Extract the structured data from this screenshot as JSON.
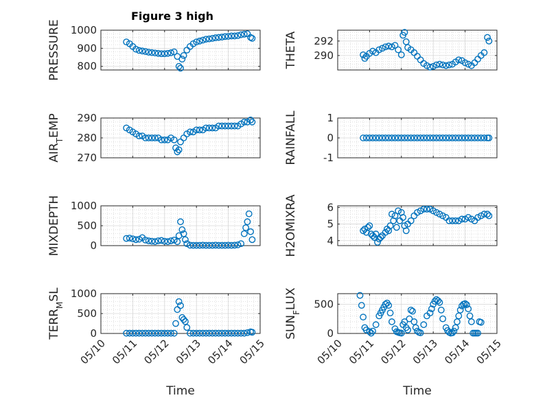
{
  "figure": {
    "title": "Figure 3 high",
    "marker_color": "#0072BD"
  },
  "chart_data": [
    {
      "type": "scatter",
      "title": "Figure 3 high",
      "ylabel": "PRESSURE",
      "xlabel": "",
      "ylim": [
        780,
        1000
      ],
      "yticks": [
        800,
        900,
        1000
      ],
      "xlim": [
        10,
        15
      ],
      "xticks": [
        "05/10",
        "05/11",
        "05/12",
        "05/13",
        "05/14",
        "05/15"
      ],
      "show_xticklabels": false,
      "grid": true,
      "x": [
        10.8,
        10.9,
        11.0,
        11.1,
        11.2,
        11.3,
        11.4,
        11.5,
        11.6,
        11.7,
        11.8,
        11.9,
        12.0,
        12.1,
        12.2,
        12.3,
        12.4,
        12.45,
        12.5,
        12.55,
        12.6,
        12.7,
        12.8,
        12.9,
        13.0,
        13.1,
        13.2,
        13.3,
        13.4,
        13.5,
        13.6,
        13.7,
        13.8,
        13.9,
        14.0,
        14.1,
        14.2,
        14.3,
        14.4,
        14.5,
        14.6,
        14.7,
        14.75
      ],
      "y": [
        935,
        925,
        910,
        895,
        888,
        885,
        882,
        878,
        876,
        874,
        872,
        870,
        870,
        872,
        875,
        880,
        855,
        800,
        790,
        840,
        860,
        890,
        910,
        925,
        935,
        940,
        945,
        950,
        952,
        955,
        958,
        960,
        962,
        965,
        966,
        968,
        968,
        970,
        975,
        978,
        980,
        960,
        955
      ]
    },
    {
      "type": "scatter",
      "title": "",
      "ylabel": "THETA",
      "xlabel": "",
      "ylim": [
        288,
        293.5
      ],
      "yticks": [
        290,
        292
      ],
      "xlim": [
        10,
        15
      ],
      "xticks": [
        "05/10",
        "05/11",
        "05/12",
        "05/13",
        "05/14",
        "05/15"
      ],
      "show_xticklabels": false,
      "grid": true,
      "x": [
        10.8,
        10.85,
        10.9,
        11.0,
        11.1,
        11.2,
        11.3,
        11.4,
        11.5,
        11.6,
        11.7,
        11.8,
        11.9,
        12.0,
        12.05,
        12.1,
        12.15,
        12.2,
        12.3,
        12.4,
        12.5,
        12.6,
        12.7,
        12.8,
        12.9,
        13.0,
        13.1,
        13.2,
        13.3,
        13.4,
        13.5,
        13.6,
        13.7,
        13.8,
        13.9,
        14.0,
        14.1,
        14.2,
        14.3,
        14.4,
        14.5,
        14.6,
        14.7,
        14.75
      ],
      "y": [
        290.1,
        289.6,
        289.9,
        290.3,
        290.6,
        290.4,
        290.8,
        291.0,
        291.2,
        291.3,
        291.2,
        291.4,
        290.8,
        290.1,
        292.8,
        293.2,
        291.9,
        291.1,
        290.8,
        290.4,
        289.9,
        289.4,
        288.9,
        288.6,
        288.4,
        288.5,
        288.7,
        288.8,
        288.7,
        288.6,
        288.7,
        288.8,
        289.1,
        289.4,
        289.3,
        289.0,
        288.8,
        288.6,
        289.0,
        289.5,
        290.0,
        290.4,
        292.5,
        292.0
      ]
    },
    {
      "type": "scatter",
      "title": "",
      "ylabel": "AIR_TEMP",
      "xlabel": "",
      "ylim": [
        270,
        290
      ],
      "yticks": [
        270,
        280,
        290
      ],
      "xlim": [
        10,
        15
      ],
      "xticks": [
        "05/10",
        "05/11",
        "05/12",
        "05/13",
        "05/14",
        "05/15"
      ],
      "show_xticklabels": false,
      "grid": true,
      "x": [
        10.8,
        10.9,
        11.0,
        11.1,
        11.2,
        11.3,
        11.4,
        11.5,
        11.6,
        11.7,
        11.8,
        11.9,
        12.0,
        12.1,
        12.2,
        12.3,
        12.35,
        12.4,
        12.45,
        12.5,
        12.6,
        12.7,
        12.8,
        12.9,
        13.0,
        13.1,
        13.2,
        13.3,
        13.4,
        13.5,
        13.6,
        13.7,
        13.8,
        13.9,
        14.0,
        14.1,
        14.2,
        14.3,
        14.4,
        14.5,
        14.6,
        14.7,
        14.75
      ],
      "y": [
        285,
        284,
        283,
        282,
        281,
        281,
        280,
        280,
        280,
        280,
        280,
        279,
        279,
        279,
        280,
        279,
        275,
        273,
        274,
        278,
        280,
        282,
        283,
        283,
        284,
        284,
        284,
        285,
        285,
        285,
        285,
        286,
        286,
        286,
        286,
        286,
        286,
        286,
        287,
        288,
        288,
        289,
        288
      ]
    },
    {
      "type": "scatter",
      "title": "",
      "ylabel": "RAINFALL",
      "xlabel": "",
      "ylim": [
        -1,
        1
      ],
      "yticks": [
        -1,
        0,
        1
      ],
      "xlim": [
        10,
        15
      ],
      "xticks": [
        "05/10",
        "05/11",
        "05/12",
        "05/13",
        "05/14",
        "05/15"
      ],
      "show_xticklabels": false,
      "grid": true,
      "x": [
        10.8,
        10.9,
        11.0,
        11.1,
        11.2,
        11.3,
        11.4,
        11.5,
        11.6,
        11.7,
        11.8,
        11.9,
        12.0,
        12.1,
        12.2,
        12.3,
        12.4,
        12.5,
        12.6,
        12.7,
        12.8,
        12.9,
        13.0,
        13.1,
        13.2,
        13.3,
        13.4,
        13.5,
        13.6,
        13.7,
        13.8,
        13.9,
        14.0,
        14.1,
        14.2,
        14.3,
        14.4,
        14.5,
        14.6,
        14.7,
        14.75
      ],
      "y": [
        0,
        0,
        0,
        0,
        0,
        0,
        0,
        0,
        0,
        0,
        0,
        0,
        0,
        0,
        0,
        0,
        0,
        0,
        0,
        0,
        0,
        0,
        0,
        0,
        0,
        0,
        0,
        0,
        0,
        0,
        0,
        0,
        0,
        0,
        0,
        0,
        0,
        0,
        0,
        0,
        0
      ]
    },
    {
      "type": "scatter",
      "title": "",
      "ylabel": "MIXDEPTH",
      "xlabel": "",
      "ylim": [
        0,
        1000
      ],
      "yticks": [
        0,
        500,
        1000
      ],
      "xlim": [
        10,
        15
      ],
      "xticks": [
        "05/10",
        "05/11",
        "05/12",
        "05/13",
        "05/14",
        "05/15"
      ],
      "show_xticklabels": false,
      "grid": true,
      "x": [
        10.8,
        10.9,
        11.0,
        11.1,
        11.2,
        11.3,
        11.4,
        11.5,
        11.6,
        11.7,
        11.8,
        11.9,
        12.0,
        12.1,
        12.2,
        12.3,
        12.4,
        12.45,
        12.5,
        12.55,
        12.6,
        12.65,
        12.7,
        12.8,
        12.9,
        13.0,
        13.1,
        13.2,
        13.3,
        13.4,
        13.5,
        13.6,
        13.7,
        13.8,
        13.9,
        14.0,
        14.1,
        14.2,
        14.3,
        14.4,
        14.5,
        14.55,
        14.6,
        14.65,
        14.7,
        14.75
      ],
      "y": [
        180,
        190,
        170,
        150,
        160,
        200,
        140,
        120,
        110,
        100,
        120,
        130,
        110,
        100,
        120,
        140,
        100,
        250,
        600,
        400,
        300,
        150,
        50,
        10,
        5,
        5,
        5,
        10,
        5,
        5,
        5,
        10,
        5,
        5,
        5,
        10,
        5,
        10,
        20,
        50,
        300,
        450,
        600,
        800,
        350,
        150
      ]
    },
    {
      "type": "scatter",
      "title": "",
      "ylabel": "H2OMIXRA",
      "xlabel": "",
      "ylim": [
        3.7,
        6.1
      ],
      "yticks": [
        4,
        5,
        6
      ],
      "xlim": [
        10,
        15
      ],
      "xticks": [
        "05/10",
        "05/11",
        "05/12",
        "05/13",
        "05/14",
        "05/15"
      ],
      "show_xticklabels": false,
      "grid": true,
      "x": [
        10.8,
        10.85,
        10.9,
        10.95,
        11.0,
        11.05,
        11.1,
        11.15,
        11.2,
        11.25,
        11.3,
        11.35,
        11.4,
        11.5,
        11.55,
        11.6,
        11.65,
        11.7,
        11.75,
        11.8,
        11.85,
        11.9,
        11.95,
        12.0,
        12.05,
        12.1,
        12.15,
        12.2,
        12.3,
        12.4,
        12.5,
        12.6,
        12.7,
        12.8,
        12.9,
        13.0,
        13.1,
        13.2,
        13.3,
        13.4,
        13.5,
        13.6,
        13.7,
        13.8,
        13.9,
        14.0,
        14.1,
        14.2,
        14.3,
        14.4,
        14.5,
        14.6,
        14.7,
        14.75
      ],
      "y": [
        4.6,
        4.7,
        4.5,
        4.8,
        4.9,
        4.4,
        4.3,
        4.2,
        4.4,
        3.9,
        4.1,
        4.2,
        4.3,
        4.5,
        4.7,
        4.6,
        4.9,
        5.6,
        5.2,
        5.5,
        4.8,
        5.8,
        5.2,
        5.7,
        5.4,
        4.9,
        4.6,
        5.0,
        5.2,
        5.5,
        5.7,
        5.8,
        5.9,
        5.9,
        5.9,
        5.8,
        5.7,
        5.6,
        5.5,
        5.4,
        5.2,
        5.2,
        5.2,
        5.2,
        5.3,
        5.3,
        5.4,
        5.3,
        5.2,
        5.4,
        5.5,
        5.6,
        5.6,
        5.5
      ]
    },
    {
      "type": "scatter",
      "title": "",
      "ylabel": "TERR_MSL",
      "xlabel": "Time",
      "ylim": [
        0,
        1000
      ],
      "yticks": [
        0,
        500,
        1000
      ],
      "xlim": [
        10,
        15
      ],
      "xticks": [
        "05/10",
        "05/11",
        "05/12",
        "05/13",
        "05/14",
        "05/15"
      ],
      "show_xticklabels": true,
      "grid": true,
      "x": [
        10.8,
        10.9,
        11.0,
        11.1,
        11.2,
        11.3,
        11.4,
        11.5,
        11.6,
        11.7,
        11.8,
        11.9,
        12.0,
        12.1,
        12.2,
        12.3,
        12.35,
        12.4,
        12.45,
        12.5,
        12.55,
        12.6,
        12.65,
        12.7,
        12.8,
        12.9,
        13.0,
        13.1,
        13.2,
        13.3,
        13.4,
        13.5,
        13.6,
        13.7,
        13.8,
        13.9,
        14.0,
        14.1,
        14.2,
        14.3,
        14.4,
        14.5,
        14.6,
        14.7,
        14.75
      ],
      "y": [
        5,
        5,
        5,
        5,
        5,
        5,
        5,
        5,
        5,
        5,
        5,
        5,
        5,
        5,
        5,
        5,
        250,
        600,
        800,
        700,
        400,
        350,
        300,
        150,
        5,
        5,
        5,
        5,
        5,
        5,
        5,
        5,
        5,
        5,
        5,
        5,
        5,
        5,
        5,
        5,
        5,
        5,
        20,
        40,
        30
      ]
    },
    {
      "type": "scatter",
      "title": "",
      "ylabel": "SUN_FLUX",
      "xlabel": "Time",
      "ylim": [
        0,
        680
      ],
      "yticks": [
        0,
        500
      ],
      "xlim": [
        10,
        15
      ],
      "xticks": [
        "05/10",
        "05/11",
        "05/12",
        "05/13",
        "05/14",
        "05/15"
      ],
      "show_xticklabels": true,
      "grid": true,
      "x": [
        10.7,
        10.75,
        10.8,
        10.85,
        10.9,
        11.0,
        11.05,
        11.1,
        11.2,
        11.3,
        11.35,
        11.4,
        11.45,
        11.5,
        11.55,
        11.6,
        11.65,
        11.7,
        11.8,
        11.85,
        11.9,
        11.95,
        12.0,
        12.05,
        12.1,
        12.15,
        12.2,
        12.25,
        12.3,
        12.35,
        12.4,
        12.45,
        12.5,
        12.55,
        12.6,
        12.7,
        12.8,
        12.9,
        12.95,
        13.0,
        13.05,
        13.1,
        13.15,
        13.2,
        13.25,
        13.3,
        13.4,
        13.45,
        13.5,
        13.55,
        13.6,
        13.65,
        13.7,
        13.75,
        13.8,
        13.85,
        13.9,
        13.95,
        14.0,
        14.05,
        14.1,
        14.15,
        14.2,
        14.25,
        14.3,
        14.35,
        14.4,
        14.45,
        14.5
      ],
      "y": [
        650,
        480,
        280,
        100,
        60,
        30,
        5,
        40,
        150,
        300,
        350,
        400,
        450,
        500,
        520,
        480,
        350,
        200,
        80,
        30,
        20,
        10,
        5,
        150,
        200,
        100,
        60,
        250,
        400,
        380,
        200,
        100,
        40,
        20,
        10,
        150,
        300,
        350,
        420,
        500,
        550,
        580,
        560,
        530,
        400,
        250,
        100,
        50,
        20,
        5,
        10,
        40,
        100,
        200,
        300,
        400,
        470,
        500,
        510,
        490,
        420,
        300,
        200,
        5,
        5,
        5,
        5,
        200,
        190
      ]
    }
  ]
}
